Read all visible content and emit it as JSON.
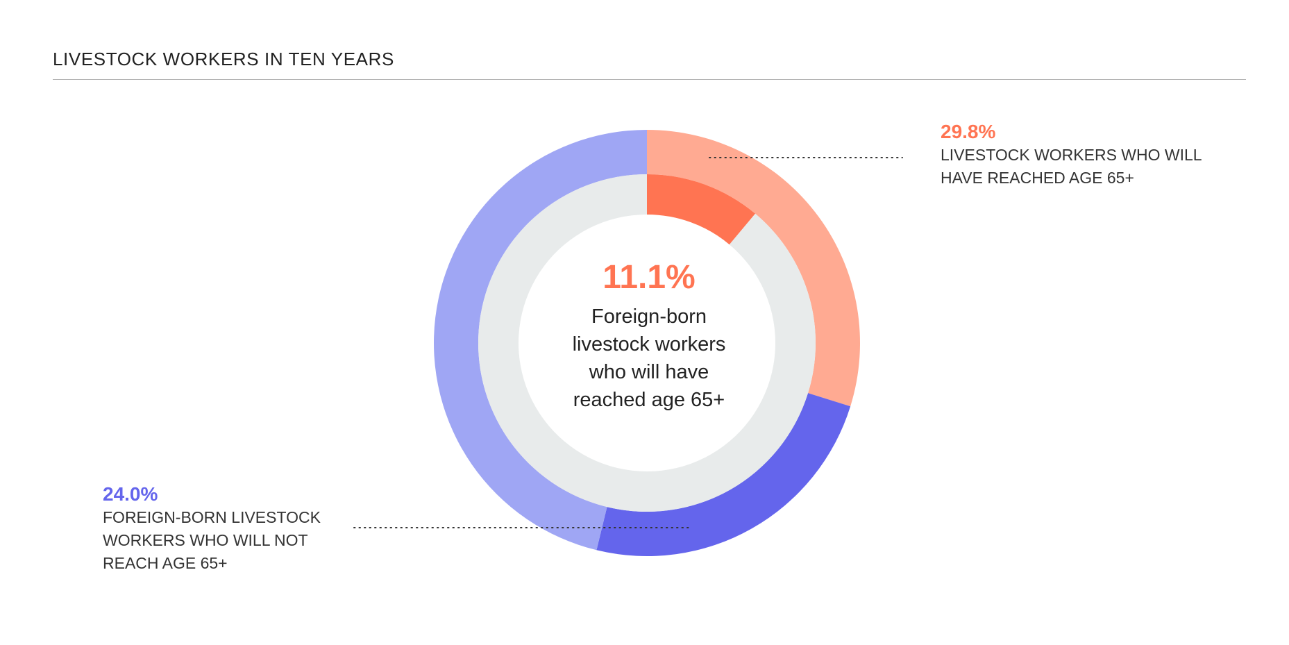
{
  "title": "LIVESTOCK WORKERS IN TEN YEARS",
  "colors": {
    "outer_highlight": "#FFAA92",
    "inner_highlight": "#FF7452",
    "outer_secondary": "#6465EC",
    "outer_remainder": "#9FA6F4",
    "inner_remainder": "#E8EBEB",
    "text": "#222222",
    "rule": "#B5B5B5"
  },
  "chart_data": {
    "type": "pie",
    "variant": "nested-donut",
    "title": "LIVESTOCK WORKERS IN TEN YEARS",
    "outer_ring": [
      {
        "label_id": "age65",
        "value": 29.8
      },
      {
        "label_id": "foreign_not65",
        "value": 24.0
      },
      {
        "label_id": "remainder",
        "value": 46.2
      }
    ],
    "inner_ring": [
      {
        "label_id": "foreign_age65",
        "value": 11.1
      },
      {
        "label_id": "remainder",
        "value": 88.9
      }
    ],
    "annotations": {
      "age65": {
        "value_text": "29.8%",
        "text": "LIVESTOCK WORKERS WHO WILL\nHAVE REACHED AGE 65+",
        "position": "top-right"
      },
      "foreign_not65": {
        "value_text": "24.0%",
        "text": "FOREIGN-BORN LIVESTOCK\nWORKERS WHO WILL NOT\nREACH AGE 65+",
        "position": "bottom-left"
      },
      "foreign_age65": {
        "value_text": "11.1%",
        "text": "Foreign-born\nlivestock workers\nwho will have\nreached age 65+",
        "position": "center"
      }
    }
  }
}
